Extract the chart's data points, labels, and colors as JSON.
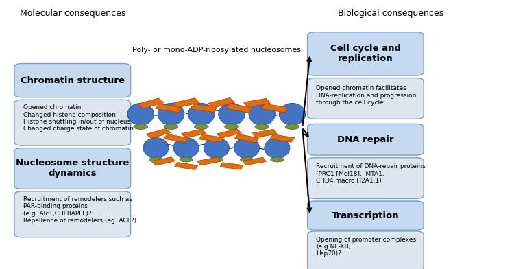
{
  "background_color": "#ffffff",
  "header_left": "Molecular consequences",
  "header_right": "Biological consequences",
  "center_label": "Poly- or mono-ADP-ribosylated nucleosomes",
  "left_box1_title": "Chromatin structure",
  "left_box1_desc": "Opened chromatin;\nChanged histone composition;\nHistone shuttling in/out of nucleus:\nChanged charge state of chromatin",
  "left_box2_title": "Nucleosome structure\ndynamics",
  "left_box2_desc": "Recruitment of remodelers such as\nPAR-binding proteins\n(e.g. Alc1,CHFRAPLF)?:\nRepellence of remodelers (eg. ACF?)",
  "right_box1_title": "Cell cycle and\nreplication",
  "right_box1_desc": "Opened chromatin facilitates\nDNA-replication and progression\nthrough the cell cycle",
  "right_box2_title": "DNA repair",
  "right_box2_desc": "Recruitment of DNA-repair proteins\n(PRC1 [Mel18],  MTA1,\nCHD4,macro H2A1.1)",
  "right_box3_title": "Transcription",
  "right_box3_desc": "Opening of promoter complexes\n(e.g.NF-KB,\nHsp70)?",
  "title_box_color": "#c5d9f1",
  "desc_box_color": "#dce6f1",
  "box_edge_color": "#7f9db9",
  "nucleosome_color": "#4472c4",
  "nucleosome_edge": "#2e5ea8",
  "green_color": "#76923c",
  "green_edge": "#4f6228",
  "orange_color": "#e36c09",
  "orange_edge": "#974706",
  "dna_color": "#17375e"
}
